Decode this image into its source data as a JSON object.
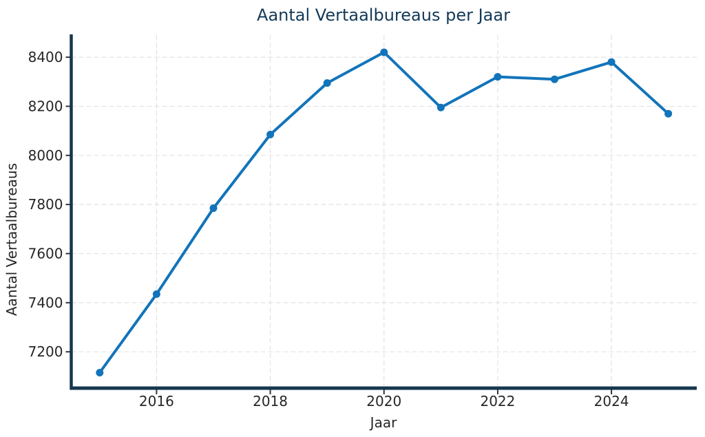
{
  "chart_data": {
    "type": "line",
    "title": "Aantal Vertaalbureaus per Jaar",
    "xlabel": "Jaar",
    "ylabel": "Aantal Vertaalbureaus",
    "x": [
      2015,
      2016,
      2017,
      2018,
      2019,
      2020,
      2021,
      2022,
      2023,
      2024,
      2025
    ],
    "series": [
      {
        "name": "Aantal Vertaalbureaus",
        "values": [
          7115,
          7435,
          7785,
          8085,
          8295,
          8420,
          8195,
          8320,
          8310,
          8380,
          8170
        ]
      }
    ],
    "xticks": [
      2016,
      2018,
      2020,
      2022,
      2024
    ],
    "yticks": [
      7200,
      7400,
      7600,
      7800,
      8000,
      8200,
      8400
    ],
    "xlim": [
      2014.5,
      2025.5
    ],
    "ylim": [
      7052,
      8490
    ],
    "grid": true,
    "grid_style": "dashed",
    "legend": "none",
    "marker": "circle",
    "line_color": "#1274ba",
    "title_color": "#133a58",
    "spine_color": "#16374e",
    "tick_label_color": "#262626",
    "grid_color": "#e2e2e2",
    "background_color": "#ffffff"
  }
}
